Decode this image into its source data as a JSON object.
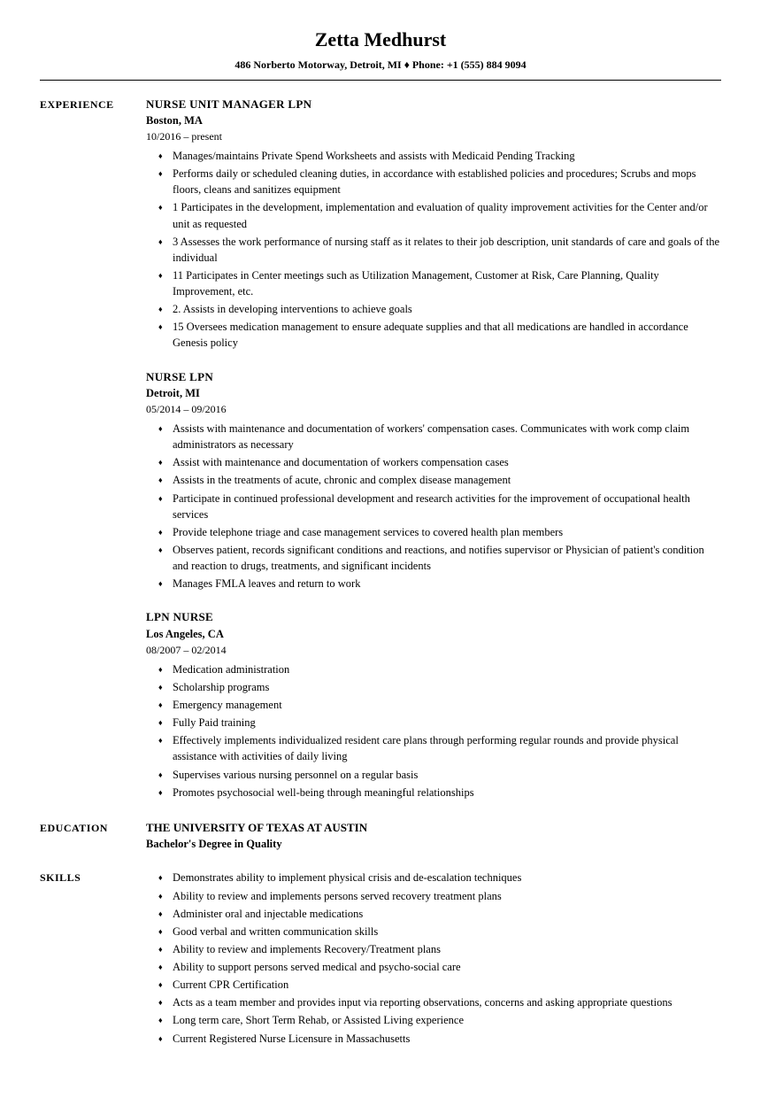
{
  "header": {
    "name": "Zetta Medhurst",
    "contact": "486 Norberto Motorway, Detroit, MI  ♦  Phone: +1 (555) 884 9094"
  },
  "sections": {
    "experience_label": "EXPERIENCE",
    "education_label": "EDUCATION",
    "skills_label": "SKILLS"
  },
  "jobs": [
    {
      "title": "NURSE UNIT MANAGER LPN",
      "location": "Boston, MA",
      "dates": "10/2016 – present",
      "bullets": [
        "Manages/maintains Private Spend Worksheets and assists with Medicaid Pending Tracking",
        "Performs daily or scheduled cleaning duties, in accordance with established policies and procedures; Scrubs and mops floors, cleans and sanitizes equipment",
        "1 Participates in the development, implementation and evaluation of quality improvement activities for the Center and/or unit as requested",
        "3 Assesses the work performance of nursing staff as it relates to their job description, unit standards of care and goals of the individual",
        "11 Participates in Center meetings such as Utilization Management, Customer at Risk, Care Planning, Quality Improvement, etc.",
        "2. Assists in developing interventions to achieve goals",
        "15 Oversees medication management to ensure adequate supplies and that all medications are handled in accordance Genesis policy"
      ]
    },
    {
      "title": "NURSE LPN",
      "location": "Detroit, MI",
      "dates": "05/2014 – 09/2016",
      "bullets": [
        "Assists with maintenance and documentation of workers' compensation cases. Communicates with work comp claim administrators as necessary",
        "Assist with maintenance and documentation of workers compensation cases",
        "Assists in the treatments of acute, chronic and complex disease management",
        "Participate in continued professional development and research activities for the improvement of occupational health services",
        "Provide telephone triage and case management services to covered health plan members",
        "Observes patient, records significant conditions and reactions, and notifies supervisor or Physician of patient's condition and reaction to drugs, treatments, and significant incidents",
        "Manages FMLA leaves and return to work"
      ]
    },
    {
      "title": "LPN NURSE",
      "location": "Los Angeles, CA",
      "dates": "08/2007 – 02/2014",
      "bullets": [
        "Medication administration",
        "Scholarship programs",
        "Emergency management",
        "Fully Paid training",
        "Effectively implements individualized resident care plans through performing regular rounds and provide physical assistance with activities of daily living",
        "Supervises various nursing personnel on a regular basis",
        "Promotes psychosocial well-being through meaningful relationships"
      ]
    }
  ],
  "education": {
    "school": "THE UNIVERSITY OF TEXAS AT AUSTIN",
    "degree": "Bachelor's Degree in Quality"
  },
  "skills": [
    "Demonstrates ability to implement physical crisis and de-escalation techniques",
    "Ability to review and implements persons served recovery treatment plans",
    "Administer oral and injectable medications",
    "Good verbal and written communication skills",
    "Ability to review and implements Recovery/Treatment plans",
    "Ability to support persons served medical and psycho-social care",
    "Current CPR Certification",
    "Acts as a team member and provides input via reporting observations, concerns and asking appropriate questions",
    "Long term care, Short Term Rehab, or Assisted Living experience",
    "Current Registered Nurse Licensure in Massachusetts"
  ]
}
